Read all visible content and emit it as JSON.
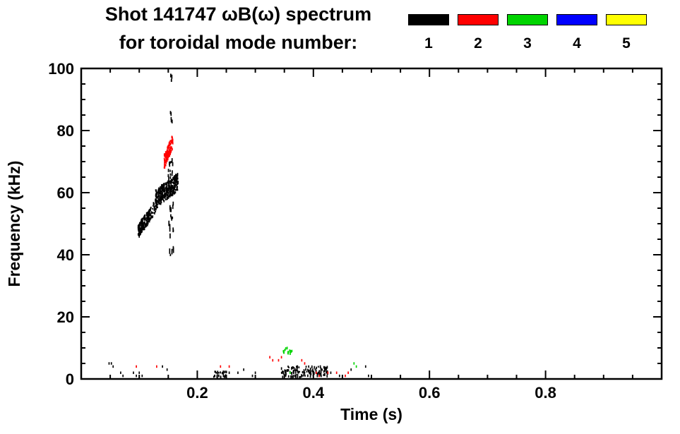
{
  "header": {
    "title_line1": "Shot 141747 ωB(ω) spectrum",
    "title_line2": "for toroidal mode number:"
  },
  "legend": {
    "items": [
      {
        "label": "1",
        "color": "#000000"
      },
      {
        "label": "2",
        "color": "#ff0000"
      },
      {
        "label": "3",
        "color": "#00d400"
      },
      {
        "label": "4",
        "color": "#0000ff"
      },
      {
        "label": "5",
        "color": "#ffff00"
      }
    ]
  },
  "chart_data": {
    "type": "scatter",
    "title": "Shot 141747 ωB(ω) spectrum for toroidal mode number: 1 2 3 4 5",
    "xlabel": "Time (s)",
    "ylabel": "Frequency (kHz)",
    "xlim": [
      0.0,
      1.0
    ],
    "ylim": [
      0,
      100
    ],
    "xticks": [
      0.2,
      0.4,
      0.6,
      0.8
    ],
    "yticks": [
      0,
      20,
      40,
      60,
      80,
      100
    ],
    "xtick_major": 0.2,
    "xtick_minor": 0.05,
    "ytick_major": 20,
    "ytick_minor": 5,
    "grid": false,
    "legend_position": "top-right",
    "series": [
      {
        "name": "n=1",
        "color": "#000000",
        "clusters": [
          {
            "mode": "ridge",
            "t": [
              0.098,
              0.118
            ],
            "f": [
              47.5,
              52.5
            ],
            "jit": 2.2,
            "n": 150
          },
          {
            "mode": "ridge",
            "t": [
              0.113,
              0.132
            ],
            "f": [
              51,
              57
            ],
            "jit": 2.0,
            "n": 60
          },
          {
            "mode": "ridge",
            "t": [
              0.128,
              0.167
            ],
            "f": [
              58,
              63.5
            ],
            "jit": 2.8,
            "n": 330
          },
          {
            "mode": "blob",
            "t": [
              0.151,
              0.159
            ],
            "f": [
              38,
              57
            ],
            "n": 20,
            "h": [
              3,
              8
            ]
          },
          {
            "mode": "blob",
            "t": [
              0.15,
              0.158
            ],
            "f": [
              64,
              71
            ],
            "n": 14,
            "h": [
              3,
              6
            ]
          },
          {
            "mode": "blob",
            "t": [
              0.153,
              0.157
            ],
            "f": [
              82,
              86
            ],
            "n": 5,
            "h": [
              3,
              6
            ]
          },
          {
            "mode": "blob",
            "t": [
              0.154,
              0.157
            ],
            "f": [
              94,
              98
            ],
            "n": 4,
            "h": [
              3,
              6
            ]
          },
          {
            "mode": "blob",
            "t": [
              0.228,
              0.252
            ],
            "f": [
              0.5,
              2.5
            ],
            "n": 25
          },
          {
            "mode": "blob",
            "t": [
              0.345,
              0.425
            ],
            "f": [
              0.5,
              4
            ],
            "n": 130
          },
          {
            "pts": [
              [
                0.048,
                5
              ],
              [
                0.052,
                5
              ],
              [
                0.055,
                4
              ],
              [
                0.068,
                2
              ],
              [
                0.072,
                1
              ],
              [
                0.09,
                2
              ],
              [
                0.095,
                1
              ],
              [
                0.1,
                2
              ],
              [
                0.105,
                1
              ],
              [
                0.14,
                4
              ],
              [
                0.148,
                3
              ],
              [
                0.23,
                1
              ],
              [
                0.235,
                2
              ],
              [
                0.245,
                1
              ],
              [
                0.255,
                2
              ],
              [
                0.27,
                2
              ],
              [
                0.28,
                3
              ],
              [
                0.295,
                1
              ],
              [
                0.3,
                2
              ],
              [
                0.43,
                2
              ],
              [
                0.445,
                1
              ],
              [
                0.465,
                3
              ],
              [
                0.49,
                4
              ],
              [
                0.495,
                1
              ]
            ]
          }
        ]
      },
      {
        "name": "n=2",
        "color": "#ff0000",
        "clusters": [
          {
            "mode": "ridge",
            "t": [
              0.143,
              0.158
            ],
            "f": [
              70,
              76.5
            ],
            "jit": 2.2,
            "n": 120
          },
          {
            "pts": [
              [
                0.095,
                4
              ],
              [
                0.13,
                4
              ],
              [
                0.24,
                4
              ],
              [
                0.255,
                4
              ],
              [
                0.325,
                7
              ],
              [
                0.33,
                6
              ],
              [
                0.34,
                6
              ],
              [
                0.345,
                7
              ],
              [
                0.38,
                6
              ],
              [
                0.385,
                5
              ],
              [
                0.405,
                2
              ],
              [
                0.41,
                1
              ],
              [
                0.425,
                2
              ],
              [
                0.44,
                2
              ],
              [
                0.455,
                1
              ],
              [
                0.46,
                2
              ]
            ]
          }
        ]
      },
      {
        "name": "n=3",
        "color": "#00d400",
        "clusters": [
          {
            "mode": "blob",
            "t": [
              0.347,
              0.362
            ],
            "f": [
              8,
              10
            ],
            "n": 14
          },
          {
            "pts": [
              [
                0.363,
                9
              ],
              [
                0.36,
                2
              ],
              [
                0.47,
                5
              ],
              [
                0.474,
                4
              ]
            ]
          }
        ]
      },
      {
        "name": "n=4",
        "color": "#0000ff",
        "clusters": []
      },
      {
        "name": "n=5",
        "color": "#ffff00",
        "clusters": []
      }
    ]
  }
}
